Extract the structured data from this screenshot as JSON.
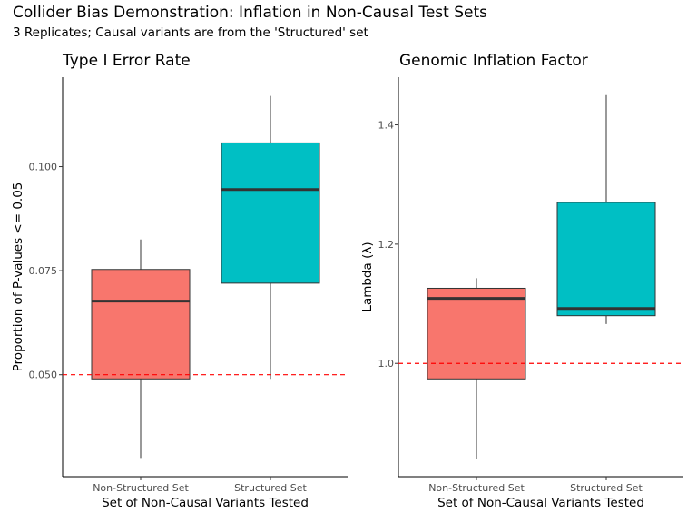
{
  "figure": {
    "title": "Collider Bias Demonstration: Inflation in Non-Causal Test Sets",
    "subtitle": "3 Replicates; Causal variants are from the 'Structured' set"
  },
  "colors": {
    "non_structured": "#F8766D",
    "structured": "#00BFC4",
    "reference_line": "#FF0000",
    "box_outline": "#333333"
  },
  "chart_data": [
    {
      "type": "box",
      "title": "Type I Error Rate",
      "xlabel": "Set of Non-Causal Variants Tested",
      "ylabel": "Proportion of P-values <= 0.05",
      "categories": [
        "Non-Structured Set",
        "Structured Set"
      ],
      "boxes": [
        {
          "category": "Non-Structured Set",
          "min": 0.03,
          "q1": 0.049,
          "median": 0.0677,
          "q3": 0.0753,
          "max": 0.0825
        },
        {
          "category": "Structured Set",
          "min": 0.049,
          "q1": 0.072,
          "median": 0.0945,
          "q3": 0.1057,
          "max": 0.117
        }
      ],
      "reference_line": {
        "y": 0.05,
        "style": "dashed",
        "color": "#FF0000"
      },
      "yticks": [
        0.05,
        0.075,
        0.1
      ],
      "ytick_labels": [
        "0.050",
        "0.075",
        "0.100"
      ],
      "ylim": [
        0.0255,
        0.1215
      ],
      "grid": false
    },
    {
      "type": "box",
      "title": "Genomic Inflation Factor",
      "xlabel": "Set of Non-Causal Variants Tested",
      "ylabel": "Lambda (λ)",
      "categories": [
        "Non-Structured Set",
        "Structured Set"
      ],
      "boxes": [
        {
          "category": "Non-Structured Set",
          "min": 0.84,
          "q1": 0.974,
          "median": 1.109,
          "q3": 1.126,
          "max": 1.143
        },
        {
          "category": "Structured Set",
          "min": 1.066,
          "q1": 1.08,
          "median": 1.092,
          "q3": 1.27,
          "max": 1.45
        }
      ],
      "reference_line": {
        "y": 1.0,
        "style": "dashed",
        "color": "#FF0000"
      },
      "yticks": [
        1.0,
        1.2,
        1.4
      ],
      "ytick_labels": [
        "1.0",
        "1.2",
        "1.4"
      ],
      "ylim": [
        0.81,
        1.48
      ],
      "grid": false
    }
  ]
}
